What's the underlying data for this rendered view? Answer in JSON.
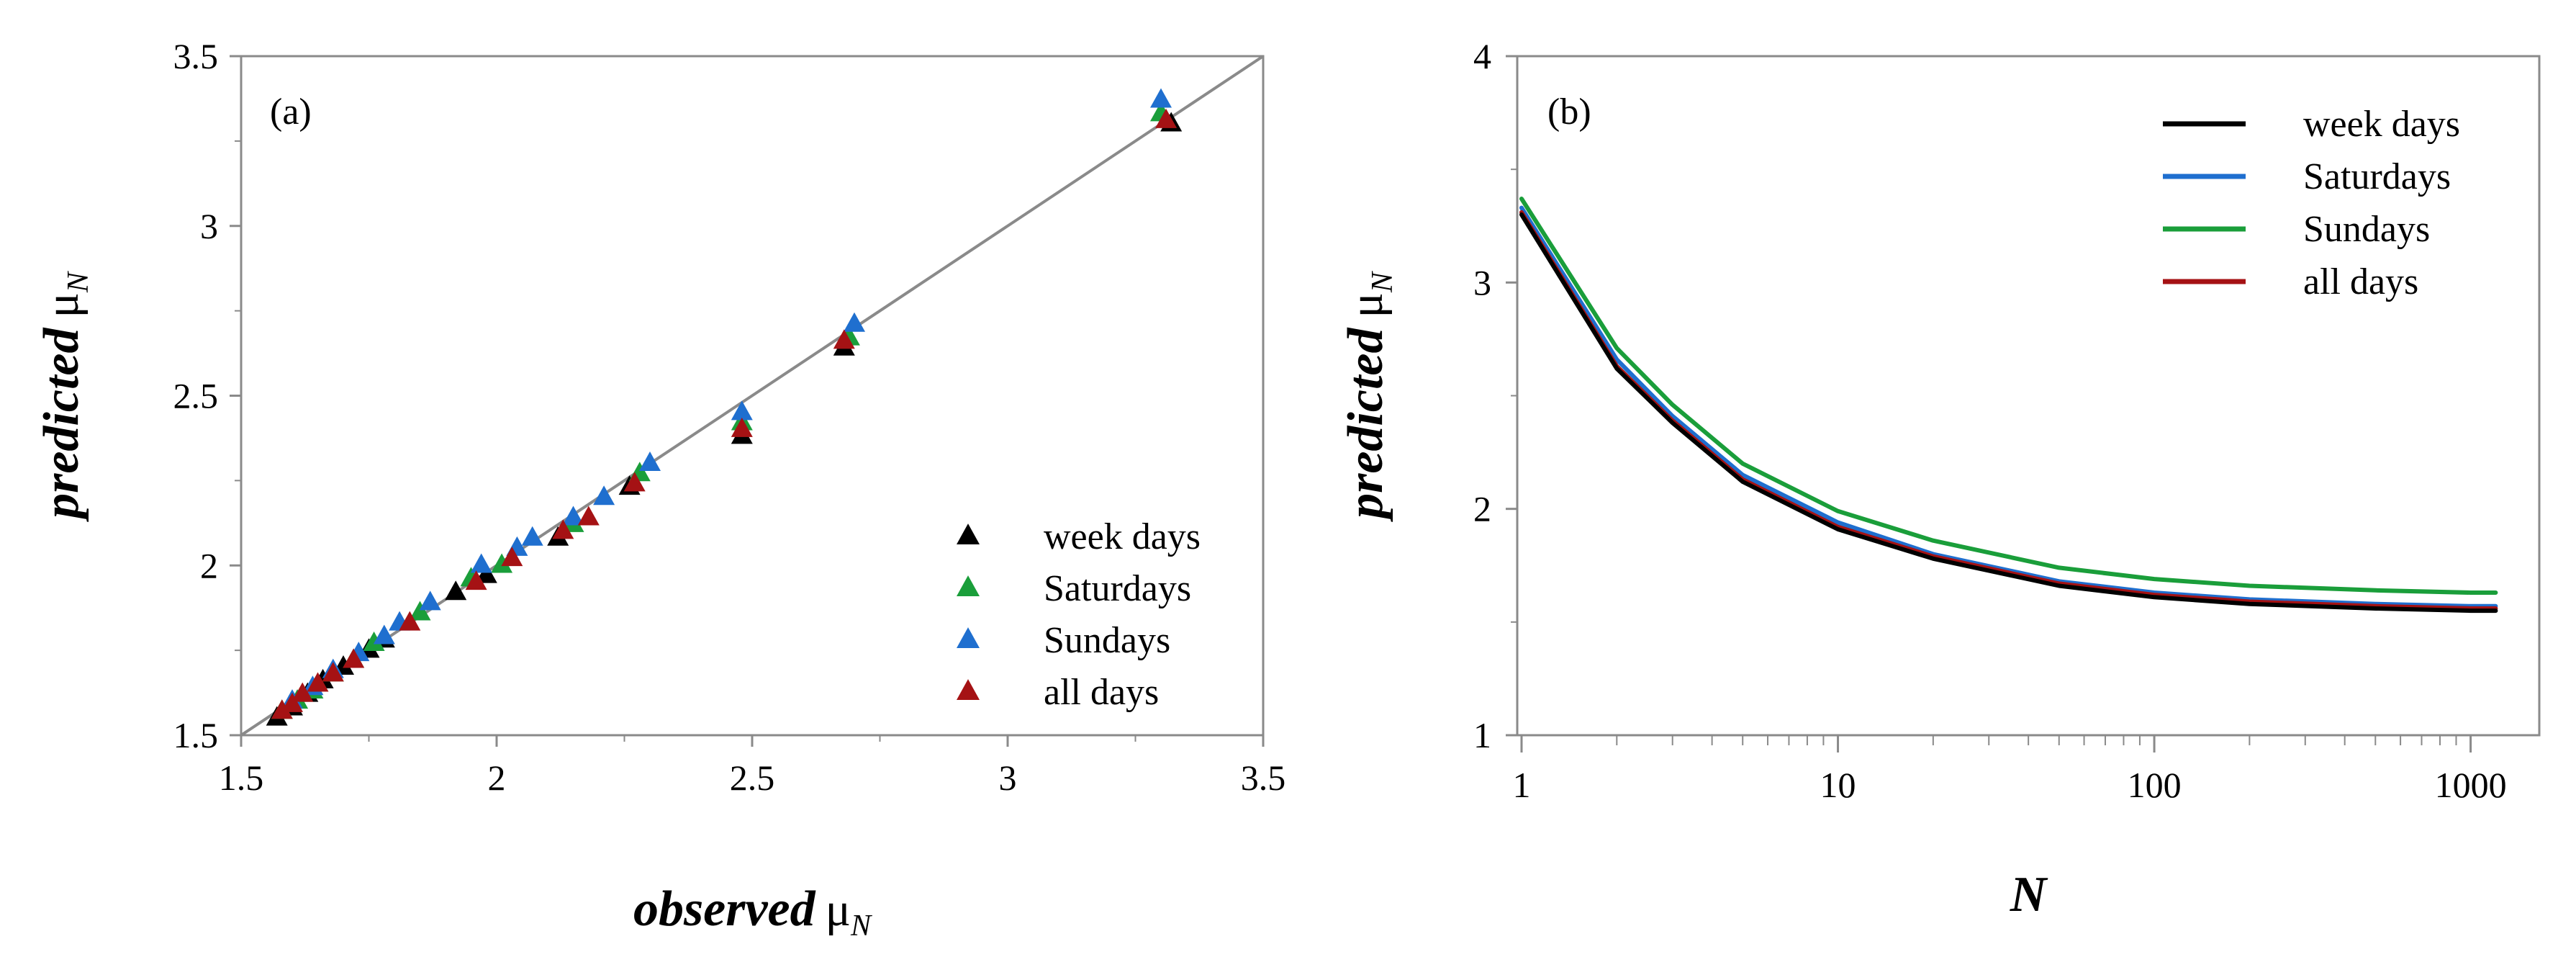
{
  "chart_data": [
    {
      "panel": "(a)",
      "type": "scatter",
      "xlabel": {
        "emph": "observed",
        "symbol": "μ",
        "subscript": "N"
      },
      "ylabel": {
        "emph": "predicted",
        "symbol": "μ",
        "subscript": "N"
      },
      "xlim": [
        1.5,
        3.5
      ],
      "ylim": [
        1.5,
        3.5
      ],
      "xticks": [
        "1.5",
        "2",
        "2.5",
        "3",
        "3.5"
      ],
      "yticks": [
        "1.5",
        "2",
        "2.5",
        "3",
        "3.5"
      ],
      "reference_line": "y = x",
      "grid": false,
      "legend_position": "bottom-right",
      "series": [
        {
          "name": "week days",
          "color": "#000000",
          "points": [
            [
              1.57,
              1.55
            ],
            [
              1.6,
              1.58
            ],
            [
              1.63,
              1.62
            ],
            [
              1.66,
              1.66
            ],
            [
              1.7,
              1.7
            ],
            [
              1.75,
              1.75
            ],
            [
              1.78,
              1.78
            ],
            [
              1.92,
              1.92
            ],
            [
              1.98,
              1.97
            ],
            [
              2.12,
              2.08
            ],
            [
              2.26,
              2.23
            ],
            [
              2.48,
              2.38
            ],
            [
              2.68,
              2.64
            ],
            [
              3.32,
              3.3
            ]
          ]
        },
        {
          "name": "Saturdays",
          "color": "#1a9e3a",
          "points": [
            [
              1.58,
              1.57
            ],
            [
              1.61,
              1.6
            ],
            [
              1.64,
              1.63
            ],
            [
              1.68,
              1.68
            ],
            [
              1.72,
              1.72
            ],
            [
              1.76,
              1.77
            ],
            [
              1.85,
              1.86
            ],
            [
              1.95,
              1.96
            ],
            [
              2.01,
              2.0
            ],
            [
              2.15,
              2.12
            ],
            [
              2.28,
              2.27
            ],
            [
              2.48,
              2.42
            ],
            [
              2.69,
              2.67
            ],
            [
              3.3,
              3.33
            ]
          ]
        },
        {
          "name": "Sundays",
          "color": "#1f6fcf",
          "points": [
            [
              1.6,
              1.6
            ],
            [
              1.64,
              1.64
            ],
            [
              1.68,
              1.69
            ],
            [
              1.73,
              1.74
            ],
            [
              1.78,
              1.79
            ],
            [
              1.81,
              1.83
            ],
            [
              1.87,
              1.89
            ],
            [
              1.97,
              2.0
            ],
            [
              2.04,
              2.05
            ],
            [
              2.07,
              2.08
            ],
            [
              2.15,
              2.14
            ],
            [
              2.21,
              2.2
            ],
            [
              2.3,
              2.3
            ],
            [
              2.48,
              2.45
            ],
            [
              2.7,
              2.71
            ],
            [
              3.3,
              3.37
            ]
          ]
        },
        {
          "name": "all days",
          "color": "#a51214",
          "points": [
            [
              1.58,
              1.57
            ],
            [
              1.6,
              1.59
            ],
            [
              1.62,
              1.62
            ],
            [
              1.65,
              1.65
            ],
            [
              1.68,
              1.68
            ],
            [
              1.72,
              1.72
            ],
            [
              1.83,
              1.83
            ],
            [
              1.96,
              1.95
            ],
            [
              2.03,
              2.02
            ],
            [
              2.13,
              2.1
            ],
            [
              2.18,
              2.14
            ],
            [
              2.27,
              2.24
            ],
            [
              2.48,
              2.4
            ],
            [
              2.68,
              2.66
            ],
            [
              3.31,
              3.31
            ]
          ]
        }
      ]
    },
    {
      "panel": "(b)",
      "type": "line",
      "xscale": "log",
      "xlabel": {
        "emph": "N"
      },
      "ylabel": {
        "emph": "predicted",
        "symbol": "μ",
        "subscript": "N"
      },
      "xlim": [
        1,
        1500
      ],
      "ylim": [
        1,
        4
      ],
      "xticks": [
        "1",
        "10",
        "100",
        "1000"
      ],
      "yticks": [
        "1",
        "2",
        "3",
        "4"
      ],
      "grid": false,
      "legend_position": "top-right",
      "x": [
        1,
        2,
        3,
        5,
        10,
        20,
        50,
        100,
        200,
        500,
        1000,
        1200
      ],
      "series": [
        {
          "name": "week days",
          "color": "#000000",
          "values": [
            3.3,
            2.62,
            2.38,
            2.12,
            1.91,
            1.78,
            1.66,
            1.61,
            1.58,
            1.56,
            1.55,
            1.55
          ]
        },
        {
          "name": "Saturdays",
          "color": "#1f6fcf",
          "values": [
            3.33,
            2.66,
            2.41,
            2.15,
            1.94,
            1.8,
            1.68,
            1.63,
            1.6,
            1.58,
            1.57,
            1.57
          ]
        },
        {
          "name": "Sundays",
          "color": "#1a9e3a",
          "values": [
            3.37,
            2.71,
            2.46,
            2.2,
            1.99,
            1.86,
            1.74,
            1.69,
            1.66,
            1.64,
            1.63,
            1.63
          ]
        },
        {
          "name": "all days",
          "color": "#a51214",
          "values": [
            3.31,
            2.63,
            2.39,
            2.13,
            1.92,
            1.79,
            1.67,
            1.62,
            1.59,
            1.57,
            1.56,
            1.56
          ]
        }
      ]
    }
  ]
}
